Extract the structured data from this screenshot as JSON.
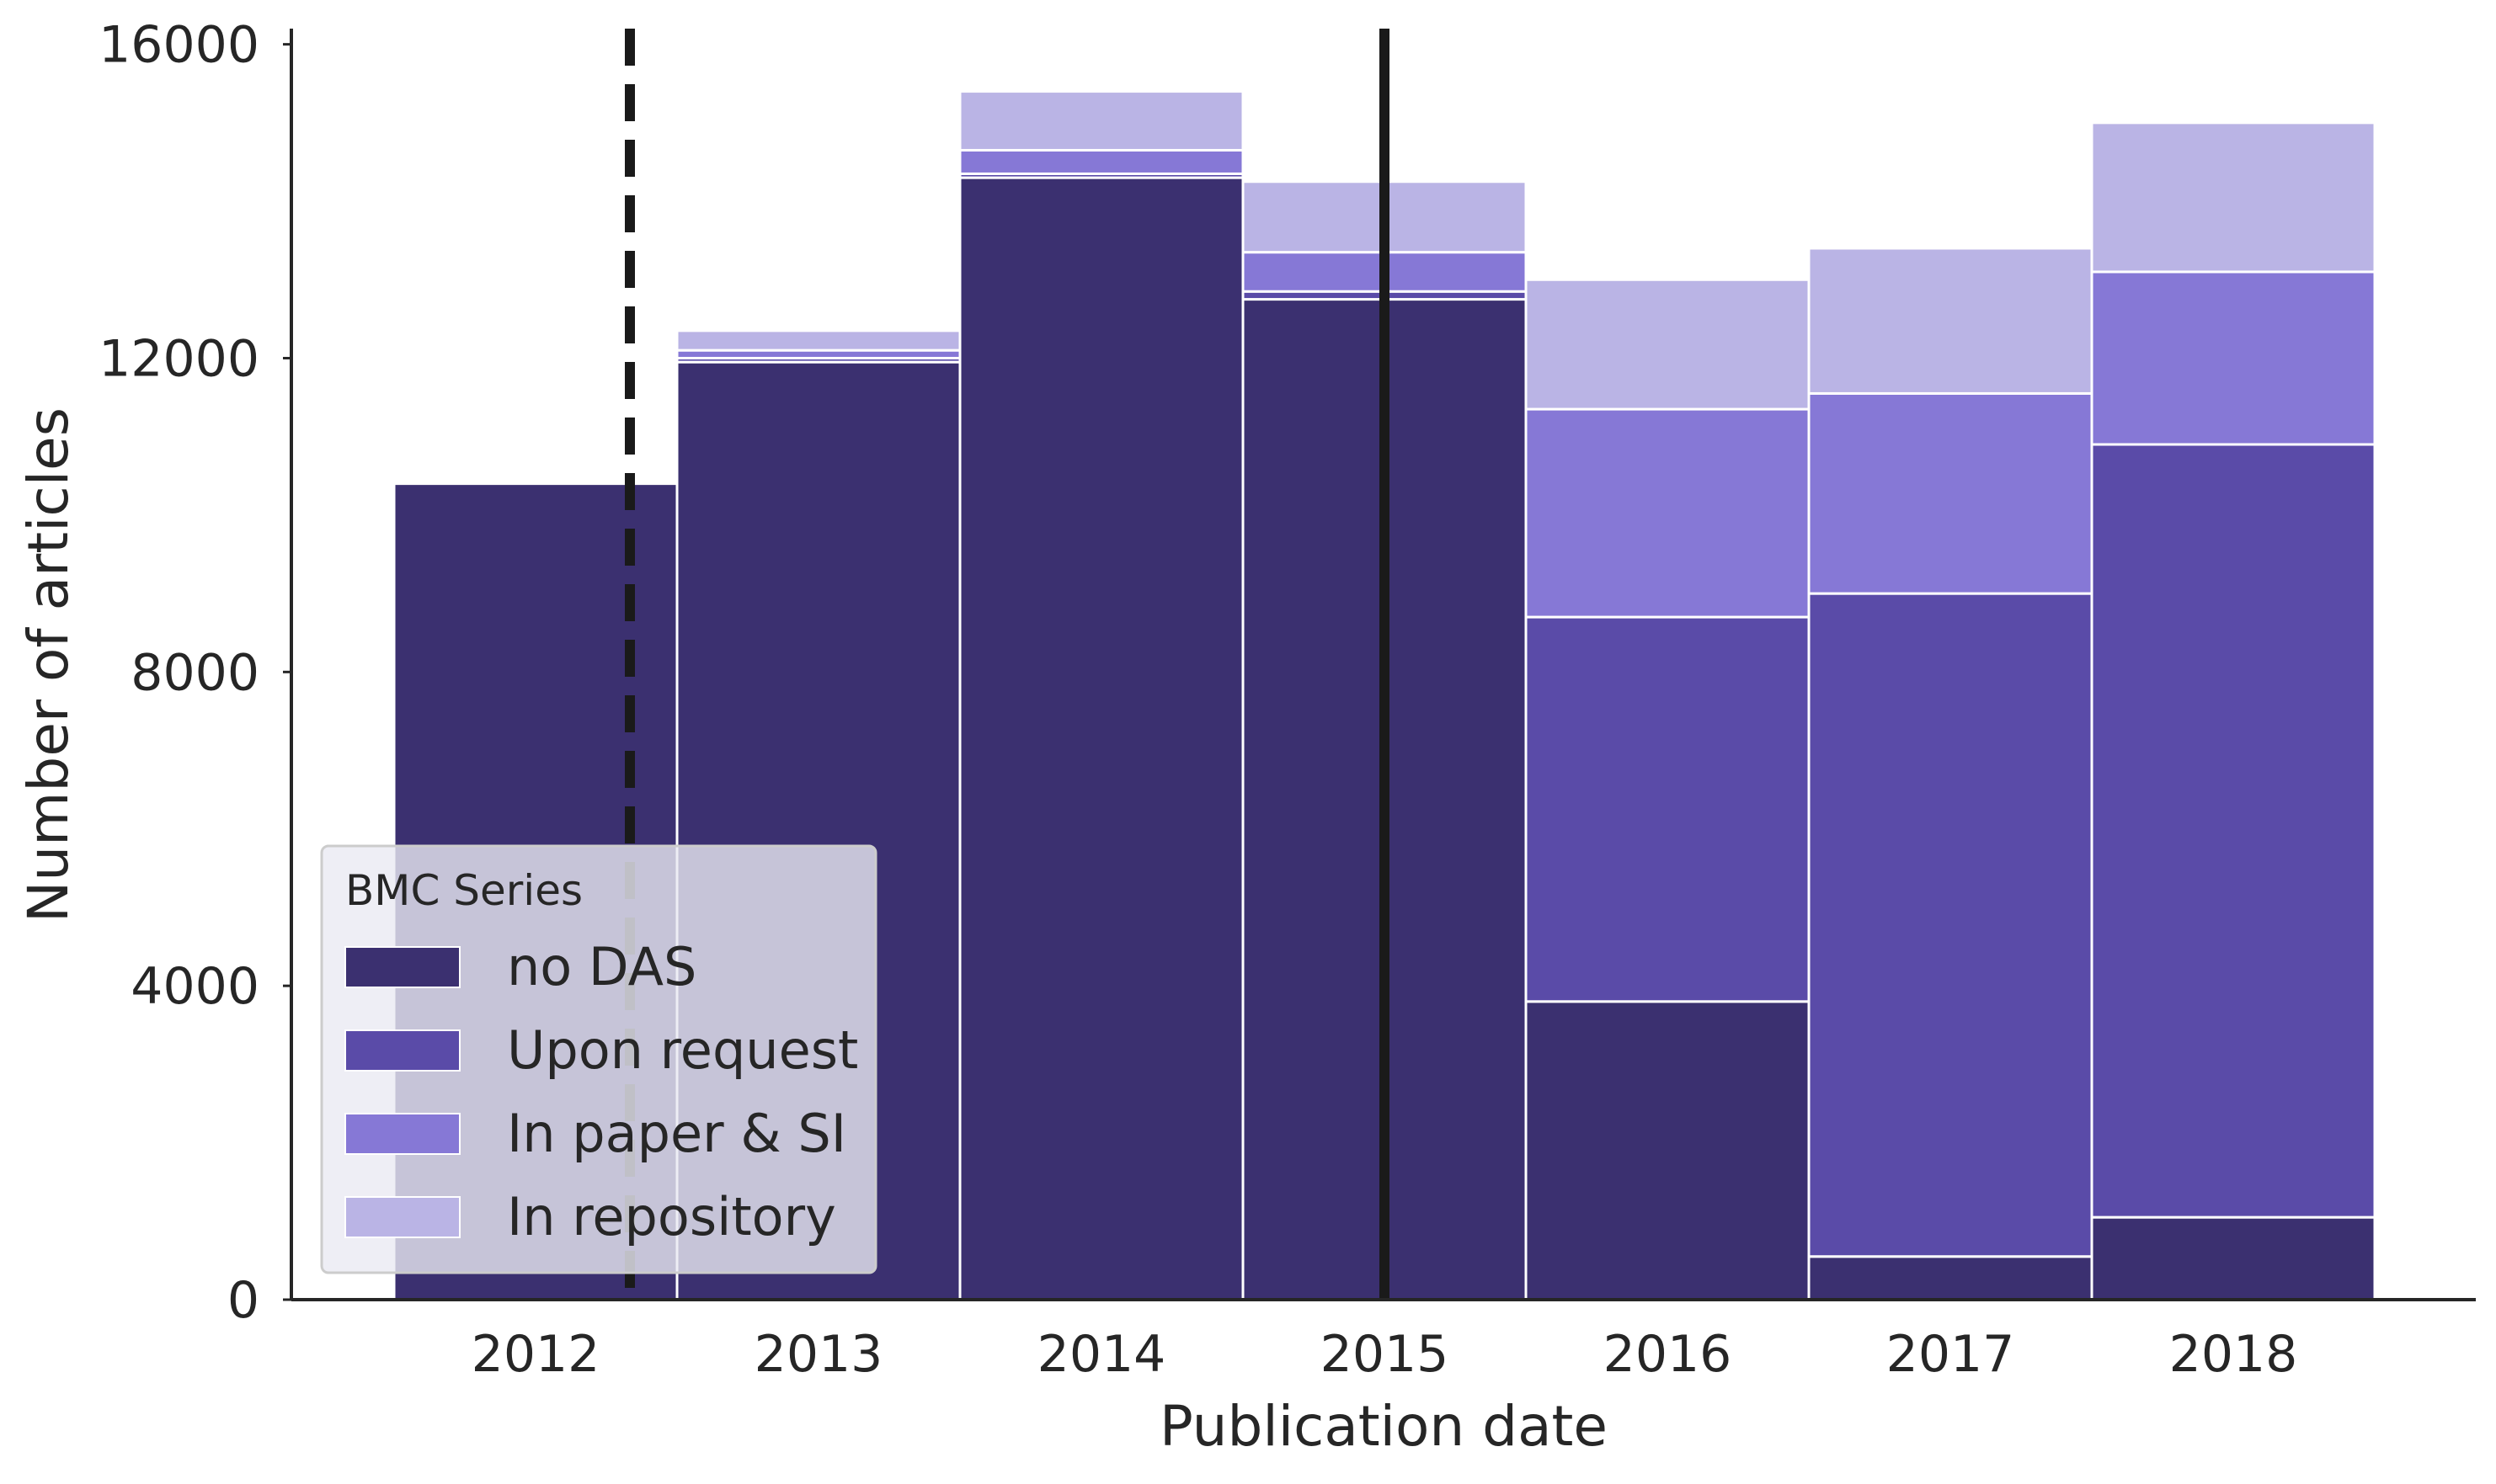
{
  "chart_data": {
    "type": "bar",
    "stacked": true,
    "categories": [
      "2012",
      "2013",
      "2014",
      "2015",
      "2016",
      "2017",
      "2018"
    ],
    "series": [
      {
        "name": "no DAS",
        "color": "#3b3070",
        "values": [
          10400,
          11950,
          14300,
          12750,
          3800,
          550,
          1050
        ]
      },
      {
        "name": "Upon request",
        "color": "#5a4ba8",
        "values": [
          0,
          50,
          50,
          100,
          4900,
          8450,
          9850
        ]
      },
      {
        "name": "In paper & SI",
        "color": "#8678d6",
        "values": [
          0,
          100,
          300,
          500,
          2650,
          2550,
          2200
        ]
      },
      {
        "name": "In repository",
        "color": "#bab4e5",
        "values": [
          0,
          250,
          750,
          900,
          1650,
          1850,
          1900
        ]
      }
    ],
    "xlabel": "Publication date",
    "ylabel": "Number of articles",
    "ylim": [
      0,
      16200
    ],
    "yticks": [
      0,
      4000,
      8000,
      12000,
      16000
    ],
    "vertical_lines": [
      {
        "x": "2012-05",
        "style": "dashed"
      },
      {
        "x": "2015-01",
        "style": "solid"
      }
    ],
    "legend": {
      "title": "BMC Series",
      "placement": "lower-left"
    },
    "grid": false
  }
}
